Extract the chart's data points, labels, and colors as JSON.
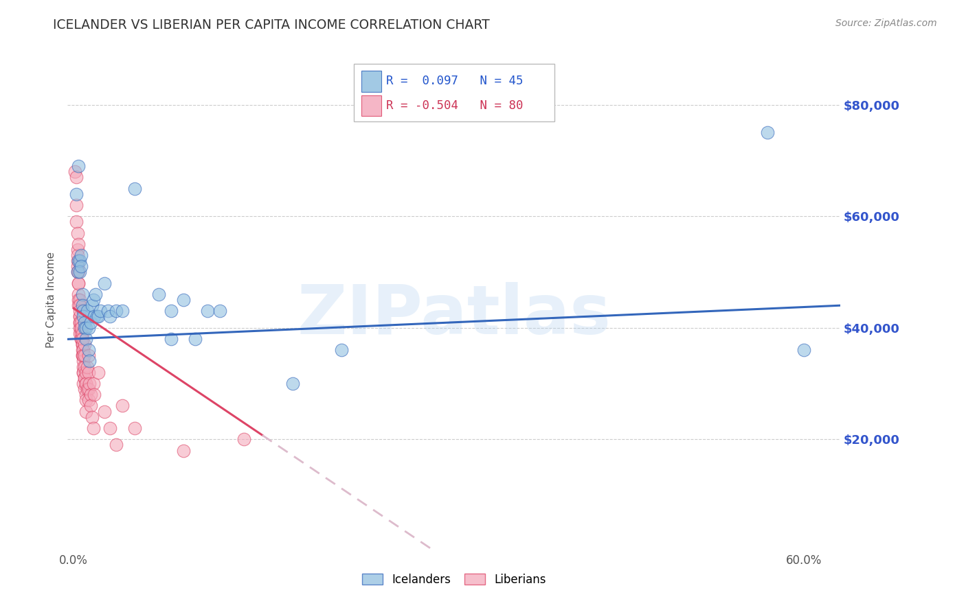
{
  "title": "ICELANDER VS LIBERIAN PER CAPITA INCOME CORRELATION CHART",
  "source": "Source: ZipAtlas.com",
  "ylabel": "Per Capita Income",
  "xlabel_ticks": [
    "0.0%",
    "",
    "",
    "",
    "",
    "",
    "60.0%"
  ],
  "xlabel_vals": [
    0.0,
    0.1,
    0.2,
    0.3,
    0.4,
    0.5,
    0.6
  ],
  "ytick_labels": [
    "$20,000",
    "$40,000",
    "$60,000",
    "$80,000"
  ],
  "ytick_vals": [
    20000,
    40000,
    60000,
    80000
  ],
  "ylim": [
    0,
    90000
  ],
  "xlim": [
    -0.005,
    0.63
  ],
  "watermark": "ZIPatlas",
  "legend_blue_r": "0.097",
  "legend_blue_n": "45",
  "legend_pink_r": "-0.504",
  "legend_pink_n": "80",
  "blue_color": "#92C0E0",
  "pink_color": "#F4AABC",
  "line_blue": "#3366BB",
  "line_pink": "#DD4466",
  "line_pink_dash": "#DDBBCC",
  "blue_scatter": [
    [
      0.002,
      64000
    ],
    [
      0.003,
      50000
    ],
    [
      0.004,
      69000
    ],
    [
      0.004,
      52000
    ],
    [
      0.005,
      52000
    ],
    [
      0.005,
      50000
    ],
    [
      0.006,
      53000
    ],
    [
      0.006,
      51000
    ],
    [
      0.007,
      46000
    ],
    [
      0.007,
      44000
    ],
    [
      0.008,
      43000
    ],
    [
      0.008,
      42000
    ],
    [
      0.009,
      41000
    ],
    [
      0.009,
      40000
    ],
    [
      0.01,
      40000
    ],
    [
      0.01,
      38000
    ],
    [
      0.011,
      43000
    ],
    [
      0.012,
      40000
    ],
    [
      0.012,
      36000
    ],
    [
      0.013,
      34000
    ],
    [
      0.014,
      41000
    ],
    [
      0.015,
      44000
    ],
    [
      0.016,
      45000
    ],
    [
      0.017,
      42000
    ],
    [
      0.018,
      46000
    ],
    [
      0.019,
      42000
    ],
    [
      0.02,
      42000
    ],
    [
      0.022,
      43000
    ],
    [
      0.025,
      48000
    ],
    [
      0.028,
      43000
    ],
    [
      0.03,
      42000
    ],
    [
      0.035,
      43000
    ],
    [
      0.04,
      43000
    ],
    [
      0.05,
      65000
    ],
    [
      0.07,
      46000
    ],
    [
      0.08,
      43000
    ],
    [
      0.08,
      38000
    ],
    [
      0.09,
      45000
    ],
    [
      0.1,
      38000
    ],
    [
      0.11,
      43000
    ],
    [
      0.12,
      43000
    ],
    [
      0.18,
      30000
    ],
    [
      0.22,
      36000
    ],
    [
      0.57,
      75000
    ],
    [
      0.6,
      36000
    ]
  ],
  "pink_scatter": [
    [
      0.001,
      68000
    ],
    [
      0.002,
      67000
    ],
    [
      0.002,
      62000
    ],
    [
      0.002,
      59000
    ],
    [
      0.003,
      57000
    ],
    [
      0.003,
      54000
    ],
    [
      0.003,
      52000
    ],
    [
      0.003,
      50000
    ],
    [
      0.003,
      53000
    ],
    [
      0.003,
      51000
    ],
    [
      0.004,
      50000
    ],
    [
      0.004,
      48000
    ],
    [
      0.004,
      46000
    ],
    [
      0.004,
      45000
    ],
    [
      0.004,
      44000
    ],
    [
      0.004,
      48000
    ],
    [
      0.004,
      55000
    ],
    [
      0.005,
      45000
    ],
    [
      0.005,
      44000
    ],
    [
      0.005,
      42000
    ],
    [
      0.005,
      41000
    ],
    [
      0.005,
      42000
    ],
    [
      0.005,
      40000
    ],
    [
      0.005,
      43000
    ],
    [
      0.005,
      41000
    ],
    [
      0.005,
      39000
    ],
    [
      0.006,
      40000
    ],
    [
      0.006,
      38000
    ],
    [
      0.006,
      41000
    ],
    [
      0.006,
      39000
    ],
    [
      0.006,
      40000
    ],
    [
      0.006,
      38000
    ],
    [
      0.007,
      37000
    ],
    [
      0.007,
      39000
    ],
    [
      0.007,
      37000
    ],
    [
      0.007,
      35000
    ],
    [
      0.007,
      37000
    ],
    [
      0.007,
      36000
    ],
    [
      0.007,
      38000
    ],
    [
      0.007,
      35000
    ],
    [
      0.008,
      36000
    ],
    [
      0.008,
      34000
    ],
    [
      0.008,
      32000
    ],
    [
      0.008,
      30000
    ],
    [
      0.008,
      33000
    ],
    [
      0.008,
      35000
    ],
    [
      0.008,
      32000
    ],
    [
      0.009,
      31000
    ],
    [
      0.009,
      33000
    ],
    [
      0.009,
      35000
    ],
    [
      0.009,
      37000
    ],
    [
      0.009,
      31000
    ],
    [
      0.009,
      29000
    ],
    [
      0.01,
      28000
    ],
    [
      0.01,
      30000
    ],
    [
      0.01,
      32000
    ],
    [
      0.01,
      30000
    ],
    [
      0.01,
      27000
    ],
    [
      0.01,
      25000
    ],
    [
      0.011,
      33000
    ],
    [
      0.011,
      29000
    ],
    [
      0.012,
      35000
    ],
    [
      0.012,
      32000
    ],
    [
      0.012,
      29000
    ],
    [
      0.012,
      27000
    ],
    [
      0.013,
      30000
    ],
    [
      0.014,
      28000
    ],
    [
      0.014,
      26000
    ],
    [
      0.015,
      24000
    ],
    [
      0.016,
      30000
    ],
    [
      0.016,
      22000
    ],
    [
      0.017,
      28000
    ],
    [
      0.02,
      32000
    ],
    [
      0.025,
      25000
    ],
    [
      0.03,
      22000
    ],
    [
      0.035,
      19000
    ],
    [
      0.04,
      26000
    ],
    [
      0.05,
      22000
    ],
    [
      0.09,
      18000
    ],
    [
      0.14,
      20000
    ]
  ]
}
